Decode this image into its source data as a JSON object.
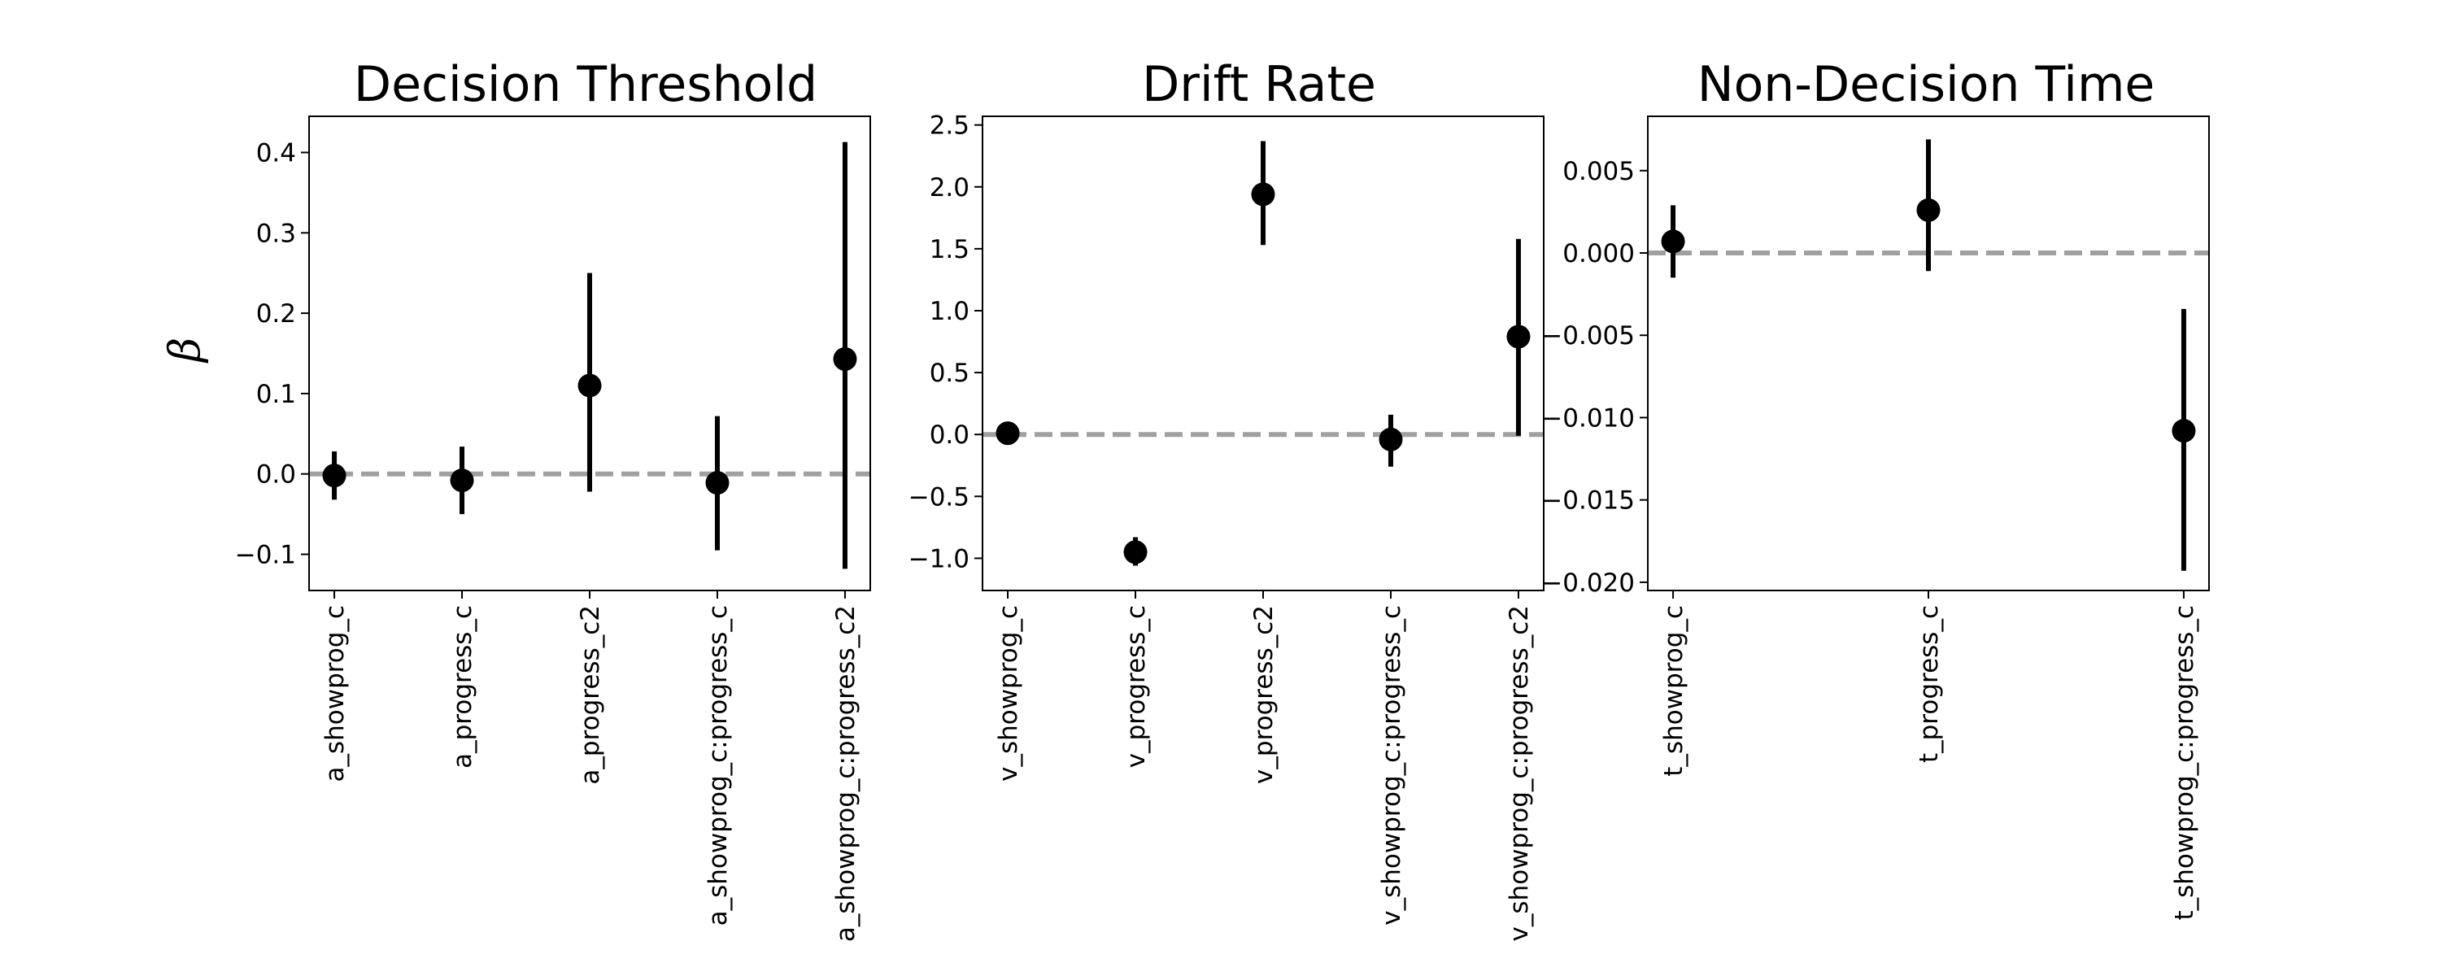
{
  "ylabel": "β",
  "colors": {
    "marker": "#000000",
    "error_bar": "#000000",
    "zero_line": "#a0a0a0",
    "axes": "#000000"
  },
  "chart_data": [
    {
      "type": "scatter",
      "title": "Decision Threshold",
      "ylabel": "β",
      "ylim": [
        -0.145,
        0.445
      ],
      "yticks": [
        -0.1,
        0.0,
        0.1,
        0.2,
        0.3,
        0.4
      ],
      "ytick_labels": [
        "−0.1",
        "0.0",
        "0.1",
        "0.2",
        "0.3",
        "0.4"
      ],
      "categories": [
        "a_showprog_c",
        "a_progress_c",
        "a_progress_c2",
        "a_showprog_c:progress_c",
        "a_showprog_c:progress_c2"
      ],
      "values": [
        -0.002,
        -0.008,
        0.11,
        -0.011,
        0.143
      ],
      "lower": [
        -0.032,
        -0.05,
        -0.022,
        -0.095,
        -0.118
      ],
      "upper": [
        0.028,
        0.034,
        0.25,
        0.072,
        0.413
      ],
      "reference_line": 0,
      "grid": false
    },
    {
      "type": "scatter",
      "title": "Drift Rate",
      "ylim": [
        -1.26,
        2.57
      ],
      "yticks": [
        -1.0,
        -0.5,
        0.0,
        0.5,
        1.0,
        1.5,
        2.0,
        2.5
      ],
      "ytick_labels": [
        "−1.0",
        "−0.5",
        "0.0",
        "0.5",
        "1.0",
        "1.5",
        "2.0",
        "2.5"
      ],
      "categories": [
        "v_showprog_c",
        "v_progress_c",
        "v_progress_c2",
        "v_showprog_c:progress_c",
        "v_showprog_c:progress_c2"
      ],
      "values": [
        0.01,
        -0.95,
        1.94,
        -0.04,
        0.79
      ],
      "lower": [
        0.0,
        -1.06,
        1.53,
        -0.26,
        -0.01
      ],
      "upper": [
        0.02,
        -0.83,
        2.37,
        0.16,
        1.58
      ],
      "reference_line": 0,
      "grid": false
    },
    {
      "type": "scatter",
      "title": "Non-Decision Time",
      "ylim": [
        -0.0205,
        0.0083
      ],
      "yticks": [
        -0.02,
        -0.015,
        -0.01,
        -0.005,
        0.0,
        0.005
      ],
      "ytick_labels": [
        "−0.020",
        "−0.015",
        "−0.010",
        "−0.005",
        "0.000",
        "0.005"
      ],
      "categories": [
        "t_showprog_c",
        "t_progress_c",
        "t_showprog_c:progress_c"
      ],
      "values": [
        0.0007,
        0.0026,
        -0.0108
      ],
      "lower": [
        -0.0015,
        -0.0011,
        -0.0193
      ],
      "upper": [
        0.0029,
        0.0069,
        -0.0034
      ],
      "reference_line": 0,
      "grid": false
    }
  ]
}
